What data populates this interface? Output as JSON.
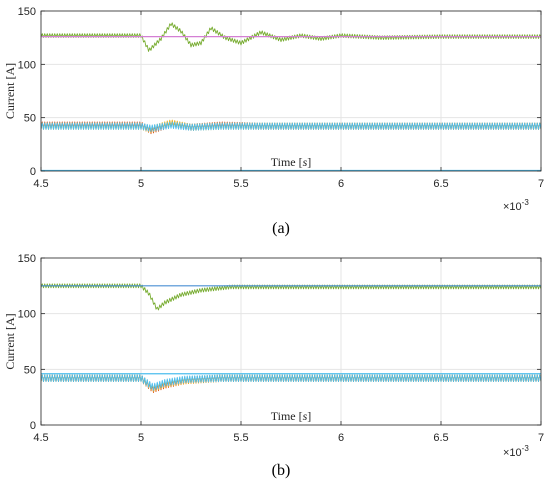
{
  "chart_data": [
    {
      "type": "line",
      "panel_label": "(a)",
      "xlabel": "Time [s]",
      "ylabel": "Current [A]",
      "x_exponent": "×10",
      "x_exponent_power": "-3",
      "xlim": [
        4.5,
        7.0
      ],
      "ylim": [
        0,
        150
      ],
      "xticks": [
        "4.5",
        "5",
        "5.5",
        "6",
        "6.5",
        "7"
      ],
      "yticks": [
        "0",
        "50",
        "100",
        "150"
      ],
      "grid": true,
      "series": [
        {
          "color": "#77ac30",
          "ripple": 3.5,
          "points": [
            [
              4.5,
              127
            ],
            [
              5.0,
              127
            ],
            [
              5.04,
              113
            ],
            [
              5.1,
              124
            ],
            [
              5.15,
              138
            ],
            [
              5.2,
              131
            ],
            [
              5.25,
              118
            ],
            [
              5.3,
              120
            ],
            [
              5.35,
              134
            ],
            [
              5.42,
              125
            ],
            [
              5.5,
              120
            ],
            [
              5.6,
              130
            ],
            [
              5.7,
              123
            ],
            [
              5.8,
              127
            ],
            [
              5.9,
              124
            ],
            [
              6.0,
              127
            ],
            [
              6.2,
              125
            ],
            [
              6.5,
              126
            ],
            [
              7.0,
              126
            ]
          ]
        },
        {
          "color": "#d95319",
          "ripple": 6,
          "points": [
            [
              4.5,
              43
            ],
            [
              5.0,
              43
            ],
            [
              5.05,
              38
            ],
            [
              5.15,
              44
            ],
            [
              5.25,
              41
            ],
            [
              5.4,
              43
            ],
            [
              5.6,
              42
            ],
            [
              6.0,
              42
            ],
            [
              7.0,
              42
            ]
          ]
        },
        {
          "color": "#edb120",
          "ripple": 6,
          "points": [
            [
              4.5,
              42
            ],
            [
              5.0,
              42
            ],
            [
              5.05,
              39
            ],
            [
              5.15,
              45
            ],
            [
              5.25,
              41
            ],
            [
              5.4,
              42
            ],
            [
              5.6,
              42
            ],
            [
              6.0,
              42
            ],
            [
              7.0,
              42
            ]
          ]
        },
        {
          "color": "#4dbeee",
          "ripple": 6,
          "points": [
            [
              4.5,
              42
            ],
            [
              5.0,
              42
            ],
            [
              5.05,
              40
            ],
            [
              5.15,
              43
            ],
            [
              5.25,
              41
            ],
            [
              5.4,
              42
            ],
            [
              7.0,
              42
            ]
          ]
        },
        {
          "color": "#d47fd4",
          "ripple": 0,
          "points": [
            [
              4.5,
              126
            ],
            [
              7.0,
              126
            ]
          ]
        },
        {
          "color": "#4dbeee",
          "ripple": 0,
          "points": [
            [
              4.5,
              0.5
            ],
            [
              7.0,
              0.5
            ]
          ]
        }
      ]
    },
    {
      "type": "line",
      "panel_label": "(b)",
      "xlabel": "Time [s]",
      "ylabel": "Current [A]",
      "x_exponent": "×10",
      "x_exponent_power": "-3",
      "xlim": [
        4.5,
        7.0
      ],
      "ylim": [
        0,
        150
      ],
      "xticks": [
        "4.5",
        "5",
        "5.5",
        "6",
        "6.5",
        "7"
      ],
      "yticks": [
        "0",
        "50",
        "100",
        "150"
      ],
      "grid": true,
      "series": [
        {
          "color": "#77ac30",
          "ripple": 3.5,
          "points": [
            [
              4.5,
              125
            ],
            [
              5.0,
              125
            ],
            [
              5.04,
              118
            ],
            [
              5.08,
              104
            ],
            [
              5.12,
              110
            ],
            [
              5.2,
              117
            ],
            [
              5.3,
              121
            ],
            [
              5.45,
              124
            ],
            [
              5.7,
              124
            ],
            [
              6.0,
              124
            ],
            [
              7.0,
              124
            ]
          ]
        },
        {
          "color": "#d95319",
          "ripple": 6,
          "points": [
            [
              4.5,
              42
            ],
            [
              5.0,
              42
            ],
            [
              5.06,
              32
            ],
            [
              5.12,
              36
            ],
            [
              5.22,
              40
            ],
            [
              5.4,
              42
            ],
            [
              7.0,
              42
            ]
          ]
        },
        {
          "color": "#edb120",
          "ripple": 6,
          "points": [
            [
              4.5,
              42
            ],
            [
              5.0,
              42
            ],
            [
              5.06,
              33
            ],
            [
              5.12,
              37
            ],
            [
              5.22,
              40
            ],
            [
              5.4,
              42
            ],
            [
              7.0,
              42
            ]
          ]
        },
        {
          "color": "#4dbeee",
          "ripple": 6,
          "points": [
            [
              4.5,
              42
            ],
            [
              5.0,
              42
            ],
            [
              5.06,
              34
            ],
            [
              5.12,
              38
            ],
            [
              5.22,
              41
            ],
            [
              5.4,
              42
            ],
            [
              7.0,
              42
            ]
          ]
        },
        {
          "color": "#4a8fd4",
          "ripple": 0,
          "points": [
            [
              4.5,
              125
            ],
            [
              7.0,
              125
            ]
          ]
        },
        {
          "color": "#4dbeee",
          "ripple": 0,
          "points": [
            [
              4.5,
              46
            ],
            [
              7.0,
              46
            ]
          ]
        }
      ]
    }
  ]
}
